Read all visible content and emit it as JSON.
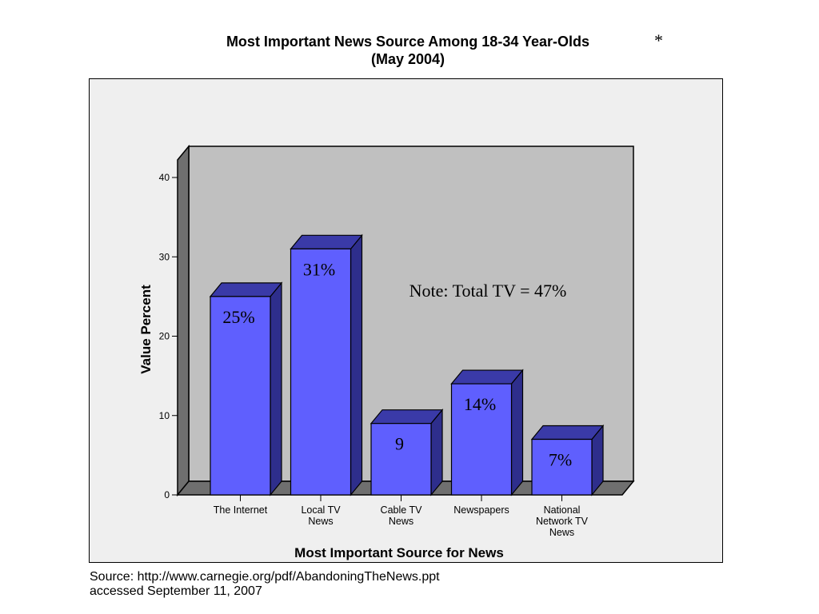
{
  "title_line1": "Most Important News Source Among 18-34 Year-Olds",
  "title_line2": "(May 2004)",
  "asterisk": "*",
  "source_line1": "Source: http://www.carnegie.org/pdf/AbandoningTheNews.ppt",
  "source_line2": "accessed September 11, 2007",
  "colors": {
    "bar_front": "#5f5ffe",
    "bar_top": "#3a3aa8",
    "bar_side": "#2e2e8c",
    "plot_back": "#c0c0c0",
    "plot_wall": "#6f6f6f",
    "frame_bg": "#efefef"
  },
  "chart_data": {
    "type": "bar",
    "title": "Most Important News Source Among 18-34 Year-Olds (May 2004)",
    "xlabel": "Most Important Source for News",
    "ylabel": "Value Percent",
    "ylim": [
      0,
      40
    ],
    "yticks": [
      "0",
      "10",
      "20",
      "30",
      "40"
    ],
    "categories": [
      [
        "The Internet"
      ],
      [
        "Local TV",
        "News"
      ],
      [
        "Cable TV",
        "News"
      ],
      [
        "Newspapers"
      ],
      [
        "National",
        "Network TV",
        "News"
      ]
    ],
    "values": [
      25,
      31,
      9,
      14,
      7
    ],
    "data_labels": [
      "25%",
      "31%",
      "9",
      "14%",
      "7%"
    ],
    "annotation": "Note: Total TV = 47%",
    "grid": false,
    "legend": "none"
  }
}
